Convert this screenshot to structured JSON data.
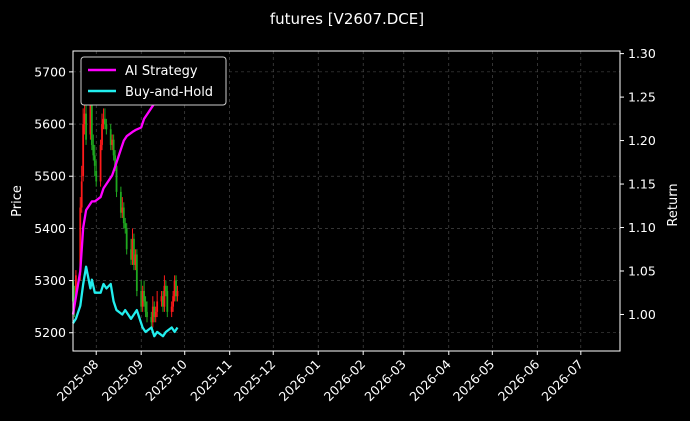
{
  "chart_data": {
    "type": "line",
    "title": "futures [V2607.DCE]",
    "xlabel": "",
    "ylabel": "Price",
    "y2label": "Return",
    "x_ticks": [
      "2025-08",
      "2025-09",
      "2025-10",
      "2025-11",
      "2025-12",
      "2026-01",
      "2026-02",
      "2026-03",
      "2026-04",
      "2026-05",
      "2026-06",
      "2026-07"
    ],
    "xlim": [
      "2025-07-16",
      "2026-07-28"
    ],
    "ylim": [
      5165,
      5740
    ],
    "y_ticks": [
      5200,
      5300,
      5400,
      5500,
      5600,
      5700
    ],
    "y2lim": [
      0.958,
      1.303
    ],
    "y2_ticks": [
      1.0,
      1.05,
      1.1,
      1.15,
      1.2,
      1.25,
      1.3
    ],
    "y2_tick_labels": [
      "1.00",
      "1.05",
      "1.10",
      "1.15",
      "1.20",
      "1.25",
      "1.30"
    ],
    "grid": true,
    "legend_position": "top-left",
    "candles": {
      "x": [
        "2025-07-16",
        "2025-07-17",
        "2025-07-18",
        "2025-07-21",
        "2025-07-22",
        "2025-07-23",
        "2025-07-24",
        "2025-07-25",
        "2025-07-28",
        "2025-07-29",
        "2025-07-30",
        "2025-07-31",
        "2025-08-01",
        "2025-08-04",
        "2025-08-05",
        "2025-08-06",
        "2025-08-07",
        "2025-08-08",
        "2025-08-11",
        "2025-08-12",
        "2025-08-13",
        "2025-08-14",
        "2025-08-15",
        "2025-08-18",
        "2025-08-19",
        "2025-08-20",
        "2025-08-21",
        "2025-08-22",
        "2025-08-25",
        "2025-08-26",
        "2025-08-27",
        "2025-08-28",
        "2025-08-29",
        "2025-09-01",
        "2025-09-02",
        "2025-09-03",
        "2025-09-04",
        "2025-09-05",
        "2025-09-08",
        "2025-09-09",
        "2025-09-10",
        "2025-09-11",
        "2025-09-12",
        "2025-09-15",
        "2025-09-16",
        "2025-09-17",
        "2025-09-18",
        "2025-09-19",
        "2025-09-22",
        "2025-09-23",
        "2025-09-24",
        "2025-09-25",
        "2025-09-26"
      ],
      "open": [
        5300,
        5260,
        5270,
        5310,
        5440,
        5500,
        5600,
        5620,
        5580,
        5640,
        5560,
        5540,
        5510,
        5490,
        5560,
        5600,
        5610,
        5600,
        5590,
        5560,
        5570,
        5540,
        5520,
        5470,
        5430,
        5440,
        5410,
        5400,
        5360,
        5340,
        5380,
        5330,
        5350,
        5280,
        5250,
        5280,
        5260,
        5240,
        5230,
        5220,
        5250,
        5230,
        5240,
        5260,
        5270,
        5250,
        5290,
        5280,
        5240,
        5250,
        5270,
        5300,
        5270
      ],
      "close": [
        5260,
        5250,
        5310,
        5440,
        5490,
        5600,
        5620,
        5570,
        5640,
        5560,
        5540,
        5520,
        5490,
        5560,
        5600,
        5610,
        5600,
        5590,
        5560,
        5570,
        5540,
        5520,
        5470,
        5430,
        5440,
        5410,
        5400,
        5360,
        5340,
        5380,
        5330,
        5350,
        5280,
        5250,
        5280,
        5260,
        5240,
        5230,
        5220,
        5250,
        5230,
        5240,
        5260,
        5270,
        5250,
        5290,
        5280,
        5240,
        5250,
        5270,
        5300,
        5270,
        5280
      ],
      "high": [
        5330,
        5290,
        5320,
        5460,
        5520,
        5630,
        5660,
        5650,
        5660,
        5650,
        5580,
        5560,
        5530,
        5570,
        5620,
        5630,
        5630,
        5610,
        5600,
        5580,
        5580,
        5550,
        5530,
        5480,
        5460,
        5450,
        5420,
        5410,
        5380,
        5400,
        5390,
        5360,
        5360,
        5300,
        5290,
        5300,
        5270,
        5260,
        5240,
        5270,
        5260,
        5250,
        5280,
        5280,
        5280,
        5310,
        5300,
        5290,
        5260,
        5280,
        5310,
        5310,
        5290
      ],
      "low": [
        5240,
        5230,
        5260,
        5300,
        5430,
        5490,
        5580,
        5560,
        5570,
        5550,
        5530,
        5500,
        5480,
        5480,
        5550,
        5590,
        5590,
        5580,
        5550,
        5550,
        5530,
        5510,
        5460,
        5420,
        5420,
        5400,
        5390,
        5350,
        5330,
        5330,
        5320,
        5320,
        5270,
        5240,
        5240,
        5250,
        5230,
        5220,
        5210,
        5210,
        5220,
        5220,
        5230,
        5250,
        5240,
        5240,
        5270,
        5230,
        5230,
        5240,
        5260,
        5260,
        5260
      ]
    },
    "series": [
      {
        "name": "AI Strategy",
        "color": "#ff00ff",
        "x": [
          "2025-07-16",
          "2025-07-18",
          "2025-07-21",
          "2025-07-23",
          "2025-07-25",
          "2025-07-29",
          "2025-07-31",
          "2025-08-04",
          "2025-08-06",
          "2025-08-08",
          "2025-08-12",
          "2025-08-14",
          "2025-08-18",
          "2025-08-20",
          "2025-08-22",
          "2025-08-26",
          "2025-08-28",
          "2025-09-01",
          "2025-09-03",
          "2025-09-05",
          "2025-09-09",
          "2025-09-11",
          "2025-09-15",
          "2025-09-17",
          "2025-09-19",
          "2025-09-22"
        ],
        "values": [
          1.0,
          1.02,
          1.05,
          1.1,
          1.12,
          1.13,
          1.13,
          1.135,
          1.145,
          1.15,
          1.16,
          1.17,
          1.19,
          1.2,
          1.205,
          1.21,
          1.212,
          1.215,
          1.225,
          1.23,
          1.24,
          1.245,
          1.25,
          1.255,
          1.26,
          1.27
        ]
      },
      {
        "name": "Buy-and-Hold",
        "color": "#22eeee",
        "x": [
          "2025-07-16",
          "2025-07-18",
          "2025-07-21",
          "2025-07-23",
          "2025-07-25",
          "2025-07-28",
          "2025-07-29",
          "2025-07-31",
          "2025-08-04",
          "2025-08-06",
          "2025-08-08",
          "2025-08-11",
          "2025-08-13",
          "2025-08-15",
          "2025-08-19",
          "2025-08-21",
          "2025-08-25",
          "2025-08-27",
          "2025-08-29",
          "2025-09-02",
          "2025-09-04",
          "2025-09-08",
          "2025-09-10",
          "2025-09-12",
          "2025-09-16",
          "2025-09-18",
          "2025-09-22",
          "2025-09-24",
          "2025-09-26"
        ],
        "values": [
          0.99,
          0.995,
          1.01,
          1.035,
          1.055,
          1.03,
          1.04,
          1.025,
          1.025,
          1.035,
          1.03,
          1.035,
          1.015,
          1.005,
          1.0,
          1.005,
          0.995,
          1.0,
          1.005,
          0.985,
          0.98,
          0.985,
          0.975,
          0.98,
          0.975,
          0.98,
          0.985,
          0.98,
          0.985
        ]
      }
    ]
  }
}
